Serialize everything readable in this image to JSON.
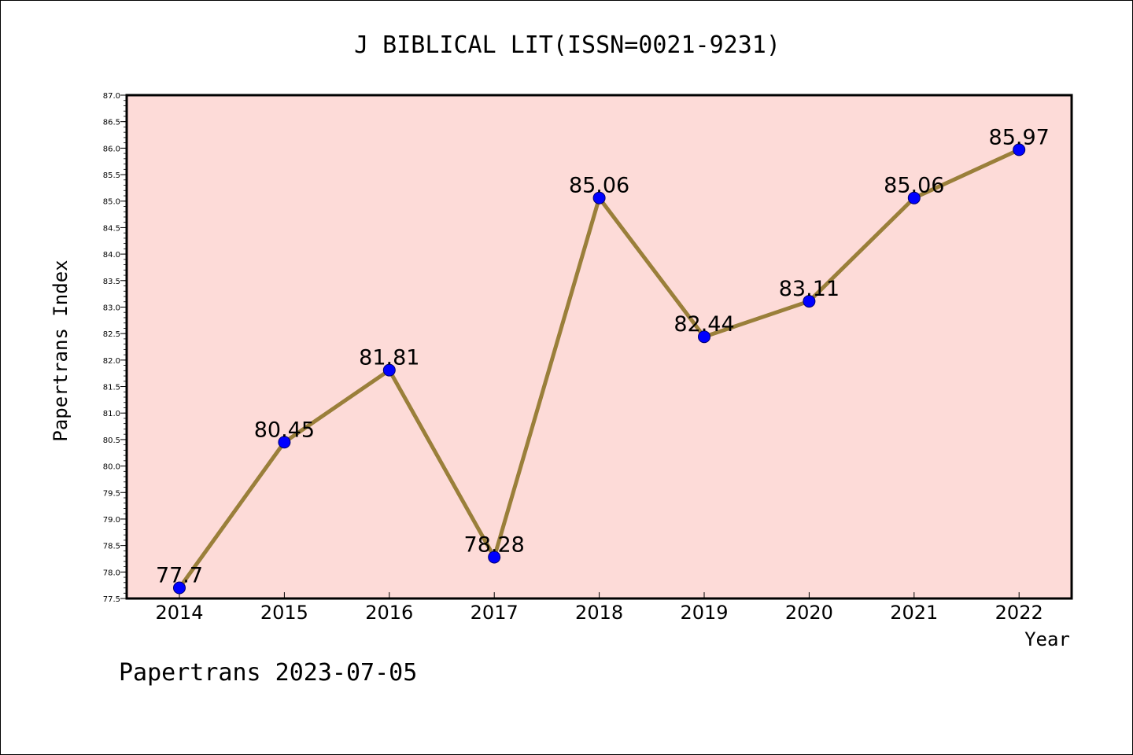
{
  "chart_data": {
    "type": "line",
    "title": "J BIBLICAL LIT(ISSN=0021-9231)",
    "xlabel": "Year",
    "ylabel": "Papertrans Index",
    "categories": [
      "2014",
      "2015",
      "2016",
      "2017",
      "2018",
      "2019",
      "2020",
      "2021",
      "2022"
    ],
    "series": [
      {
        "values": [
          77.7,
          80.45,
          81.81,
          78.28,
          85.06,
          82.44,
          83.11,
          85.06,
          85.97
        ],
        "labels": [
          "77.7",
          "80.45",
          "81.81",
          "78.28",
          "85.06",
          "82.44",
          "83.11",
          "85.06",
          "85.97"
        ],
        "line_color": "#9a7f3a",
        "marker_color": "#0000ff"
      }
    ],
    "ylim": [
      77.5,
      87.0
    ],
    "yticks": [
      "77.5",
      "78.0",
      "78.5",
      "79.0",
      "79.5",
      "80.0",
      "80.5",
      "81.0",
      "81.5",
      "82.0",
      "82.5",
      "83.0",
      "83.5",
      "84.0",
      "84.5",
      "85.0",
      "85.5",
      "86.0",
      "86.5",
      "87.0"
    ],
    "plot_background": "#fddbd8",
    "grid": false,
    "legend": "none"
  },
  "footer": "Papertrans 2023-07-05"
}
